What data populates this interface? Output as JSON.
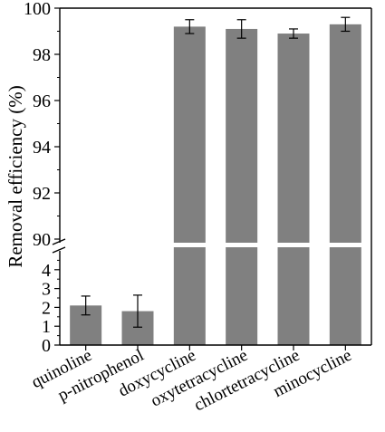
{
  "chart_data": {
    "type": "bar",
    "title": "",
    "xlabel": "",
    "ylabel": "Removal efficiency (%)",
    "categories": [
      "quinoline",
      "p-nitrophenol",
      "doxycycline",
      "oxytetracycline",
      "chlortetracycline",
      "minocycline"
    ],
    "values": [
      2.1,
      1.8,
      99.2,
      99.1,
      98.9,
      99.3
    ],
    "errors": [
      0.5,
      0.85,
      0.3,
      0.4,
      0.2,
      0.3
    ],
    "axis_break": {
      "lower_range": [
        0,
        5
      ],
      "upper_range": [
        90,
        100
      ],
      "lower_ticks": [
        "0",
        "1",
        "2",
        "3",
        "4"
      ],
      "upper_ticks": [
        "90",
        "92",
        "94",
        "96",
        "98",
        "100"
      ]
    },
    "bar_color": "#808080",
    "grid": false
  }
}
